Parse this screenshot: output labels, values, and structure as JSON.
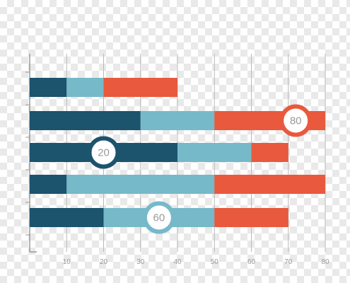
{
  "chart_data": {
    "type": "bar",
    "orientation": "horizontal",
    "stacked": true,
    "title": "",
    "xlabel": "",
    "ylabel": "",
    "xlim": [
      0,
      80
    ],
    "x_ticks": [
      10,
      20,
      30,
      40,
      50,
      60,
      70,
      80
    ],
    "grid": true,
    "legend": "none",
    "rows": [
      {
        "segments": [
          {
            "start": 0,
            "end": 10,
            "color": "#1c536d"
          },
          {
            "start": 10,
            "end": 20,
            "color": "#76b9c9"
          },
          {
            "start": 20,
            "end": 40,
            "color": "#e9593d"
          }
        ]
      },
      {
        "segments": [
          {
            "start": 0,
            "end": 30,
            "color": "#1c536d"
          },
          {
            "start": 30,
            "end": 50,
            "color": "#76b9c9"
          },
          {
            "start": 50,
            "end": 80,
            "color": "#e9593d"
          }
        ]
      },
      {
        "segments": [
          {
            "start": 0,
            "end": 40,
            "color": "#1c536d"
          },
          {
            "start": 40,
            "end": 60,
            "color": "#76b9c9"
          },
          {
            "start": 60,
            "end": 70,
            "color": "#e9593d"
          }
        ]
      },
      {
        "segments": [
          {
            "start": 0,
            "end": 10,
            "color": "#1c536d"
          },
          {
            "start": 10,
            "end": 50,
            "color": "#76b9c9"
          },
          {
            "start": 50,
            "end": 80,
            "color": "#e9593d"
          }
        ]
      },
      {
        "segments": [
          {
            "start": 0,
            "end": 20,
            "color": "#1c536d"
          },
          {
            "start": 20,
            "end": 50,
            "color": "#76b9c9"
          },
          {
            "start": 50,
            "end": 70,
            "color": "#e9593d"
          }
        ]
      }
    ],
    "annotations": [
      {
        "text": "80",
        "row": 1,
        "x": 72,
        "color": "#e9593d"
      },
      {
        "text": "20",
        "row": 2,
        "x": 20,
        "color": "#1c536d"
      },
      {
        "text": "60",
        "row": 4,
        "x": 35,
        "color": "#76b9c9"
      }
    ],
    "colors": {
      "dark_blue": "#1c536d",
      "light_blue": "#76b9c9",
      "orange": "#e9593d",
      "grid": "#b9b9b9",
      "axis": "#999999",
      "tick_label": "#999999",
      "badge_text": "#999999"
    }
  }
}
